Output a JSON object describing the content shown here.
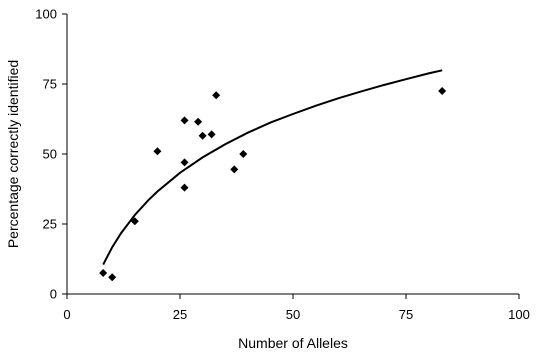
{
  "chart_data": {
    "type": "scatter",
    "title": "",
    "xlabel": "Number of Alleles",
    "ylabel": "Percentage correctly identified",
    "xlim": [
      0,
      100
    ],
    "ylim": [
      0,
      100
    ],
    "xticks": [
      "0",
      "25",
      "50",
      "75",
      "100"
    ],
    "yticks": [
      "0",
      "25",
      "50",
      "75",
      "100"
    ],
    "grid": false,
    "legend": "none",
    "colors": {
      "points": "#000000",
      "curve": "#000000",
      "axis": "#000000"
    },
    "series": [
      {
        "type": "scatter",
        "marker": "diamond",
        "x": [
          8,
          10,
          15,
          20,
          26,
          26,
          26,
          29,
          30,
          32,
          33,
          37,
          39,
          83
        ],
        "y": [
          7.5,
          6,
          26,
          51,
          62,
          47,
          38,
          61.5,
          56.5,
          57,
          71,
          44.5,
          50,
          72.5
        ]
      },
      {
        "type": "line",
        "x": [
          8,
          10,
          12,
          15,
          18,
          20,
          25,
          30,
          35,
          40,
          45,
          50,
          55,
          60,
          65,
          70,
          75,
          80,
          83
        ],
        "y": [
          10.5,
          16.7,
          21.8,
          28.2,
          33.5,
          36.6,
          43.3,
          48.8,
          53.5,
          57.6,
          61.2,
          64.3,
          67.2,
          69.9,
          72.3,
          74.6,
          76.7,
          78.8,
          79.9
        ]
      }
    ]
  }
}
